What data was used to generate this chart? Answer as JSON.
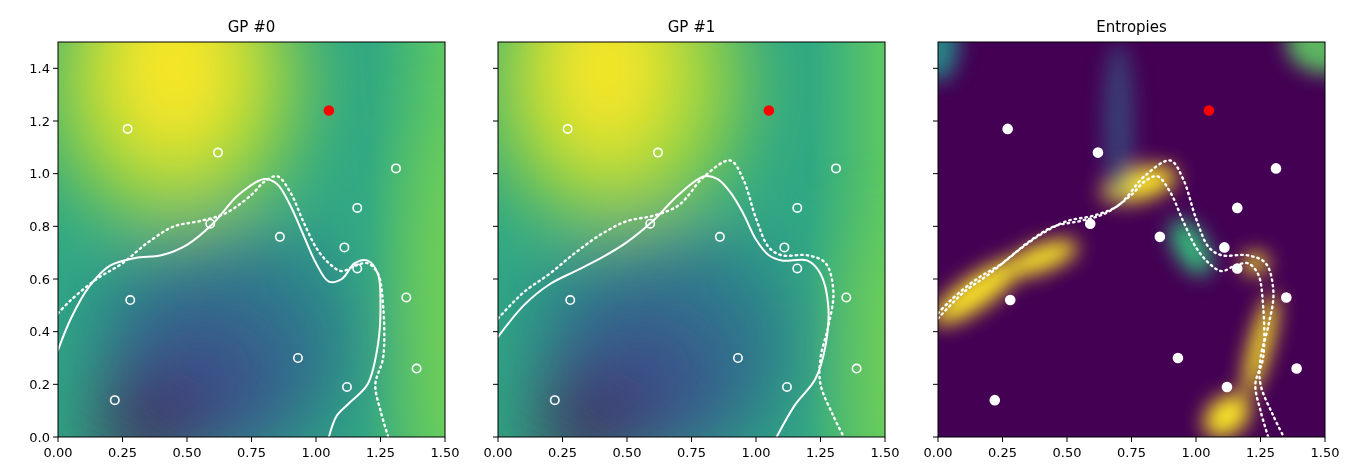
{
  "chart_data": [
    {
      "type": "scatter",
      "title": "GP #0",
      "xlim": [
        0,
        1.5
      ],
      "ylim": [
        0,
        1.5
      ],
      "xticks": [
        {
          "value": 0,
          "label": "0.00"
        },
        {
          "value": 0.25,
          "label": "0.25"
        },
        {
          "value": 0.5,
          "label": "0.50"
        },
        {
          "value": 0.75,
          "label": "0.75"
        },
        {
          "value": 1,
          "label": "1.00"
        },
        {
          "value": 1.25,
          "label": "1.25"
        },
        {
          "value": 1.5,
          "label": "1.50"
        }
      ],
      "yticks": [
        {
          "value": 0,
          "label": "0.0"
        },
        {
          "value": 0.2,
          "label": "0.2"
        },
        {
          "value": 0.4,
          "label": "0.4"
        },
        {
          "value": 0.6,
          "label": "0.6"
        },
        {
          "value": 0.8,
          "label": "0.8"
        },
        {
          "value": 1,
          "label": "1.0"
        },
        {
          "value": 1.2,
          "label": "1.2"
        },
        {
          "value": 1.4,
          "label": "1.4"
        }
      ],
      "marker": "circle",
      "grid": false,
      "series": [
        {
          "type": "line",
          "marker": "none",
          "color": "#ffffff",
          "line_style": "solid",
          "x": [
            0.0,
            0.05,
            0.12,
            0.2,
            0.3,
            0.4,
            0.5,
            0.6,
            0.7,
            0.8,
            0.85,
            0.9,
            0.95,
            1.0,
            1.05,
            1.1,
            1.15,
            1.2,
            1.24,
            1.25,
            1.24,
            1.2,
            1.13,
            1.08,
            1.05
          ],
          "values": [
            0.33,
            0.45,
            0.57,
            0.65,
            0.68,
            0.69,
            0.73,
            0.81,
            0.92,
            0.98,
            0.96,
            0.88,
            0.77,
            0.66,
            0.59,
            0.6,
            0.66,
            0.67,
            0.62,
            0.5,
            0.35,
            0.2,
            0.13,
            0.08,
            0.0
          ]
        },
        {
          "type": "line",
          "marker": "none",
          "color": "#ffffff",
          "line_style": "dotted",
          "x": [
            0.0,
            0.05,
            0.15,
            0.25,
            0.35,
            0.45,
            0.55,
            0.65,
            0.75,
            0.8,
            0.85,
            0.9,
            0.95,
            1.0,
            1.05,
            1.1,
            1.15,
            1.2,
            1.24,
            1.26,
            1.26,
            1.23,
            1.25,
            1.28
          ],
          "values": [
            0.47,
            0.52,
            0.6,
            0.66,
            0.74,
            0.8,
            0.82,
            0.85,
            0.92,
            0.97,
            0.99,
            0.93,
            0.82,
            0.72,
            0.66,
            0.63,
            0.65,
            0.66,
            0.62,
            0.5,
            0.3,
            0.2,
            0.1,
            0.0
          ]
        },
        {
          "type": "scatter",
          "color": "#ffffff",
          "x": [
            0.27,
            0.62,
            1.31,
            1.16,
            0.59,
            0.86,
            1.11,
            1.16,
            0.28,
            1.35,
            0.93,
            1.39,
            1.12,
            0.22
          ],
          "values": [
            1.17,
            1.08,
            1.02,
            0.87,
            0.81,
            0.76,
            0.72,
            0.64,
            0.52,
            0.53,
            0.3,
            0.26,
            0.19,
            0.14
          ]
        },
        {
          "type": "scatter",
          "color": "#ff0000",
          "x": [
            1.05
          ],
          "values": [
            1.24
          ]
        }
      ]
    },
    {
      "type": "scatter",
      "title": "GP #1",
      "xlim": [
        0,
        1.5
      ],
      "ylim": [
        0,
        1.5
      ],
      "tick_labels": "x",
      "xticks": [
        {
          "value": 0,
          "label": "0.00"
        },
        {
          "value": 0.25,
          "label": "0.25"
        },
        {
          "value": 0.5,
          "label": "0.50"
        },
        {
          "value": 0.75,
          "label": "0.75"
        },
        {
          "value": 1,
          "label": "1.00"
        },
        {
          "value": 1.25,
          "label": "1.25"
        },
        {
          "value": 1.5,
          "label": "1.50"
        }
      ],
      "yticks": [
        0,
        0.2,
        0.4,
        0.6,
        0.8,
        1,
        1.2,
        1.4
      ],
      "marker": "circle",
      "grid": false,
      "series": [
        {
          "type": "line",
          "marker": "none",
          "color": "#ffffff",
          "line_style": "solid",
          "x": [
            0.0,
            0.1,
            0.2,
            0.3,
            0.4,
            0.5,
            0.6,
            0.7,
            0.8,
            0.85,
            0.9,
            0.95,
            1.0,
            1.05,
            1.1,
            1.2,
            1.25,
            1.28,
            1.27,
            1.23,
            1.15,
            1.08
          ],
          "values": [
            0.38,
            0.5,
            0.58,
            0.63,
            0.68,
            0.74,
            0.82,
            0.92,
            0.99,
            0.98,
            0.93,
            0.85,
            0.75,
            0.69,
            0.67,
            0.67,
            0.62,
            0.5,
            0.35,
            0.22,
            0.12,
            0.0
          ]
        },
        {
          "type": "line",
          "marker": "none",
          "color": "#ffffff",
          "line_style": "dotted",
          "x": [
            0.0,
            0.1,
            0.2,
            0.3,
            0.4,
            0.5,
            0.6,
            0.7,
            0.8,
            0.9,
            0.95,
            1.0,
            1.05,
            1.1,
            1.2,
            1.27,
            1.3,
            1.28,
            1.25,
            1.25,
            1.3,
            1.34
          ],
          "values": [
            0.45,
            0.55,
            0.62,
            0.7,
            0.77,
            0.82,
            0.84,
            0.88,
            0.99,
            1.05,
            0.98,
            0.83,
            0.72,
            0.69,
            0.69,
            0.66,
            0.55,
            0.42,
            0.3,
            0.2,
            0.08,
            0.0
          ]
        },
        {
          "type": "scatter",
          "color": "#ffffff",
          "x": [
            0.27,
            0.62,
            1.31,
            1.16,
            0.59,
            0.86,
            1.11,
            1.16,
            0.28,
            1.35,
            0.93,
            1.39,
            1.12,
            0.22
          ],
          "values": [
            1.17,
            1.08,
            1.02,
            0.87,
            0.81,
            0.76,
            0.72,
            0.64,
            0.52,
            0.53,
            0.3,
            0.26,
            0.19,
            0.14
          ]
        },
        {
          "type": "scatter",
          "color": "#ff0000",
          "x": [
            1.05
          ],
          "values": [
            1.24
          ]
        }
      ]
    },
    {
      "type": "scatter",
      "title": "Entropies",
      "xlim": [
        0,
        1.5
      ],
      "ylim": [
        0,
        1.5
      ],
      "tick_labels": "x",
      "xticks": [
        {
          "value": 0,
          "label": "0.00"
        },
        {
          "value": 0.25,
          "label": "0.25"
        },
        {
          "value": 0.5,
          "label": "0.50"
        },
        {
          "value": 0.75,
          "label": "0.75"
        },
        {
          "value": 1,
          "label": "1.00"
        },
        {
          "value": 1.25,
          "label": "1.25"
        },
        {
          "value": 1.5,
          "label": "1.50"
        }
      ],
      "yticks": [
        0,
        0.2,
        0.4,
        0.6,
        0.8,
        1,
        1.2,
        1.4
      ],
      "marker": "circle",
      "grid": false,
      "series": [
        {
          "type": "line",
          "marker": "none",
          "color": "#ffffff",
          "line_style": "dotted",
          "x": [
            0.0,
            0.05,
            0.15,
            0.25,
            0.35,
            0.45,
            0.55,
            0.65,
            0.75,
            0.8,
            0.85,
            0.9,
            0.95,
            1.0,
            1.05,
            1.1,
            1.15,
            1.2,
            1.24,
            1.26,
            1.26,
            1.23,
            1.25,
            1.28
          ],
          "values": [
            0.47,
            0.52,
            0.6,
            0.66,
            0.74,
            0.8,
            0.82,
            0.85,
            0.92,
            0.97,
            0.99,
            0.93,
            0.82,
            0.72,
            0.66,
            0.63,
            0.65,
            0.66,
            0.62,
            0.5,
            0.3,
            0.2,
            0.1,
            0.0
          ]
        },
        {
          "type": "line",
          "marker": "none",
          "color": "#ffffff",
          "line_style": "dotted",
          "x": [
            0.0,
            0.1,
            0.2,
            0.3,
            0.4,
            0.5,
            0.6,
            0.7,
            0.8,
            0.9,
            0.95,
            1.0,
            1.05,
            1.1,
            1.2,
            1.27,
            1.3,
            1.28,
            1.25,
            1.25,
            1.3,
            1.34
          ],
          "values": [
            0.45,
            0.55,
            0.62,
            0.7,
            0.77,
            0.82,
            0.84,
            0.88,
            0.99,
            1.05,
            0.98,
            0.83,
            0.72,
            0.69,
            0.69,
            0.66,
            0.55,
            0.42,
            0.3,
            0.2,
            0.08,
            0.0
          ]
        },
        {
          "type": "scatter",
          "color": "#ffffff",
          "x": [
            0.27,
            0.62,
            1.31,
            1.16,
            0.59,
            0.86,
            1.11,
            1.16,
            0.28,
            1.35,
            0.93,
            1.39,
            1.12,
            0.22
          ],
          "values": [
            1.17,
            1.08,
            1.02,
            0.87,
            0.81,
            0.76,
            0.72,
            0.64,
            0.52,
            0.53,
            0.3,
            0.26,
            0.19,
            0.14
          ]
        },
        {
          "type": "scatter",
          "color": "#ff0000",
          "x": [
            1.05
          ],
          "values": [
            1.24
          ]
        }
      ]
    }
  ]
}
